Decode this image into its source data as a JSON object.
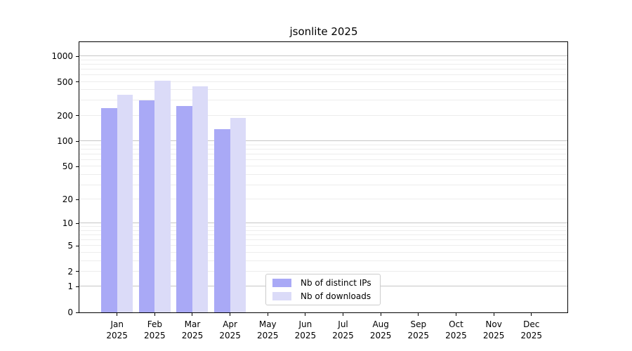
{
  "chart_data": {
    "type": "bar",
    "title": "jsonlite 2025",
    "categories": [
      "Jan",
      "Feb",
      "Mar",
      "Apr",
      "May",
      "Jun",
      "Jul",
      "Aug",
      "Sep",
      "Oct",
      "Nov",
      "Dec"
    ],
    "category_year": "2025",
    "series": [
      {
        "name": "Nb of distinct IPs",
        "color": "#a9a9f6",
        "values": [
          245,
          300,
          260,
          140,
          0,
          0,
          0,
          0,
          0,
          0,
          0,
          0
        ]
      },
      {
        "name": "Nb of downloads",
        "color": "#dbdbf8",
        "values": [
          350,
          515,
          445,
          190,
          0,
          0,
          0,
          0,
          0,
          0,
          0,
          0
        ]
      }
    ],
    "y_axis": {
      "ticks": [
        0,
        1,
        2,
        5,
        10,
        20,
        50,
        100,
        200,
        500,
        1000
      ],
      "scale": "log10(value+1)",
      "range_top_value": 1460
    },
    "x_axis": {
      "label_format": "month + year, two lines"
    },
    "grid": {
      "major_at": [
        1,
        10,
        100,
        1000
      ],
      "minor_at": "2-9 per decade",
      "major_color": "#c6c6c6",
      "minor_color": "#ededed"
    },
    "legend": {
      "position": "bottom-center",
      "entries": [
        "Nb of distinct IPs",
        "Nb of downloads"
      ]
    },
    "background_color": "#ffffff",
    "text_color": "#000000"
  }
}
